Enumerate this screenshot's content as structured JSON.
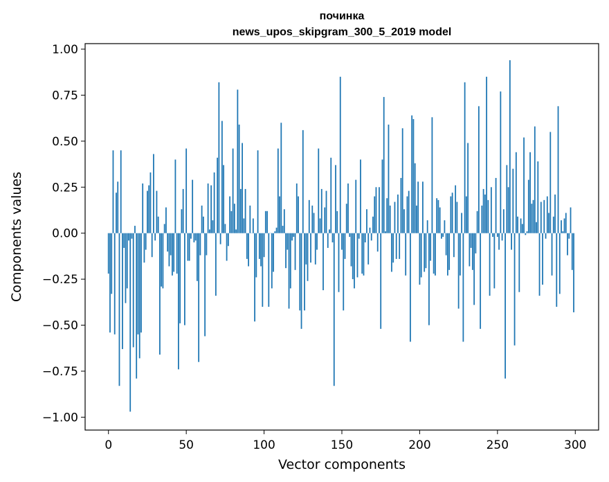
{
  "chart_data": {
    "type": "bar",
    "title": "починка",
    "subtitle": "news_upos_skipgram_300_5_2019 model",
    "xlabel": "Vector components",
    "ylabel": "Components values",
    "xlim": [
      -15,
      315
    ],
    "ylim": [
      -1.07,
      1.03
    ],
    "xticks": [
      0,
      50,
      100,
      150,
      200,
      250,
      300
    ],
    "xtick_labels": [
      "0",
      "50",
      "100",
      "150",
      "200",
      "250",
      "300"
    ],
    "yticks": [
      1.0,
      0.75,
      0.5,
      0.25,
      0.0,
      -0.25,
      -0.5,
      -0.75,
      -1.0
    ],
    "ytick_labels": [
      "1.00",
      "0.75",
      "0.50",
      "0.25",
      "0.00",
      "−0.25",
      "−0.50",
      "−0.75",
      "−1.00"
    ],
    "grid": false,
    "bar_color": "#1f77b4",
    "x": "indices 0-299 (one bar per vector component)",
    "values": [
      -0.22,
      -0.54,
      -0.33,
      0.45,
      -0.55,
      0.22,
      0.28,
      -0.83,
      0.45,
      -0.63,
      -0.08,
      -0.38,
      -0.3,
      -0.04,
      -0.97,
      -0.03,
      -0.62,
      0.04,
      -0.79,
      -0.55,
      -0.68,
      -0.54,
      0.27,
      -0.16,
      -0.09,
      0.23,
      0.26,
      0.33,
      -0.13,
      0.43,
      -0.04,
      0.23,
      0.09,
      -0.66,
      -0.29,
      -0.3,
      0.05,
      0.14,
      -0.1,
      -0.18,
      -0.12,
      -0.23,
      -0.21,
      0.4,
      -0.22,
      -0.74,
      -0.49,
      0.13,
      0.24,
      -0.5,
      0.46,
      -0.15,
      -0.15,
      -0.03,
      0.29,
      -0.05,
      -0.04,
      -0.26,
      -0.7,
      -0.12,
      0.15,
      0.09,
      -0.56,
      -0.12,
      0.27,
      0.02,
      0.26,
      0.07,
      0.33,
      -0.34,
      0.41,
      0.82,
      -0.06,
      0.61,
      0.37,
      0.05,
      -0.15,
      -0.07,
      0.2,
      0.12,
      0.46,
      0.16,
      0.02,
      0.78,
      0.59,
      0.24,
      0.49,
      0.08,
      0.24,
      -0.14,
      -0.18,
      0.15,
      0.0,
      0.08,
      -0.48,
      -0.24,
      0.45,
      -0.14,
      -0.18,
      -0.4,
      -0.13,
      0.12,
      0.12,
      -0.4,
      0.0,
      -0.3,
      -0.21,
      0.01,
      0.03,
      0.46,
      0.2,
      0.6,
      0.04,
      0.13,
      -0.19,
      -0.09,
      -0.41,
      -0.3,
      -0.04,
      -0.02,
      -0.2,
      0.27,
      0.2,
      -0.42,
      -0.52,
      0.56,
      -0.42,
      -0.17,
      -0.26,
      0.18,
      -0.16,
      0.15,
      0.11,
      -0.17,
      -0.09,
      0.46,
      0.08,
      0.24,
      -0.31,
      0.14,
      0.23,
      -0.08,
      0.02,
      0.41,
      -0.05,
      -0.83,
      0.37,
      0.12,
      -0.32,
      0.85,
      -0.09,
      -0.42,
      -0.14,
      0.16,
      0.27,
      -0.02,
      -0.18,
      -0.25,
      -0.3,
      0.29,
      -0.24,
      -0.03,
      0.4,
      -0.22,
      -0.23,
      -0.05,
      0.13,
      -0.17,
      0.03,
      -0.04,
      0.09,
      0.2,
      0.25,
      -0.1,
      0.25,
      -0.52,
      0.4,
      0.74,
      0.01,
      0.19,
      0.59,
      0.15,
      -0.21,
      -0.16,
      0.17,
      -0.14,
      0.21,
      -0.14,
      0.3,
      0.57,
      0.13,
      -0.23,
      0.2,
      0.23,
      -0.59,
      0.64,
      0.62,
      0.38,
      0.15,
      0.28,
      -0.28,
      -0.24,
      0.28,
      -0.21,
      -0.19,
      0.07,
      -0.5,
      -0.15,
      0.63,
      -0.22,
      -0.23,
      0.19,
      0.18,
      0.14,
      -0.03,
      -0.02,
      0.07,
      -0.12,
      -0.23,
      -0.2,
      0.2,
      0.22,
      -0.13,
      0.26,
      0.17,
      -0.41,
      -0.23,
      0.11,
      -0.59,
      0.82,
      0.2,
      0.49,
      -0.18,
      -0.08,
      -0.2,
      -0.39,
      -0.11,
      0.12,
      0.69,
      -0.52,
      0.15,
      0.24,
      0.21,
      0.85,
      0.18,
      -0.34,
      0.25,
      -0.02,
      -0.3,
      0.3,
      -0.02,
      -0.09,
      0.77,
      -0.04,
      0.13,
      -0.79,
      0.37,
      0.25,
      0.94,
      -0.09,
      0.35,
      -0.61,
      0.44,
      0.09,
      -0.32,
      0.08,
      0.05,
      0.52,
      -0.01,
      0.01,
      0.29,
      0.44,
      0.16,
      0.18,
      0.58,
      0.06,
      0.39,
      -0.34,
      0.17,
      -0.28,
      0.18,
      -0.03,
      0.2,
      0.11,
      0.55,
      -0.23,
      0.09,
      0.21,
      -0.4,
      0.69,
      -0.33,
      0.07,
      0.01,
      0.08,
      0.11,
      -0.12,
      -0.03,
      0.14,
      -0.2,
      -0.43
    ]
  }
}
